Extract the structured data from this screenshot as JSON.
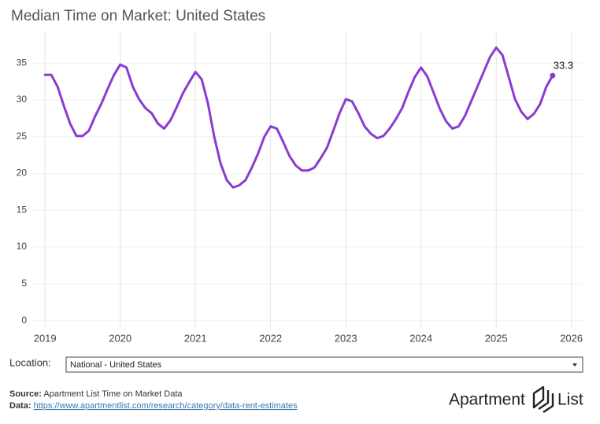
{
  "chart_data": {
    "type": "line",
    "title": "Median Time on Market: United States",
    "x": [
      2019,
      2019.083,
      2019.167,
      2019.25,
      2019.333,
      2019.417,
      2019.5,
      2019.583,
      2019.667,
      2019.75,
      2019.833,
      2019.917,
      2020,
      2020.083,
      2020.167,
      2020.25,
      2020.333,
      2020.417,
      2020.5,
      2020.583,
      2020.667,
      2020.75,
      2020.833,
      2020.917,
      2021,
      2021.083,
      2021.167,
      2021.25,
      2021.333,
      2021.417,
      2021.5,
      2021.583,
      2021.667,
      2021.75,
      2021.833,
      2021.917,
      2022,
      2022.083,
      2022.167,
      2022.25,
      2022.333,
      2022.417,
      2022.5,
      2022.583,
      2022.667,
      2022.75,
      2022.833,
      2022.917,
      2023,
      2023.083,
      2023.167,
      2023.25,
      2023.333,
      2023.417,
      2023.5,
      2023.583,
      2023.667,
      2023.75,
      2023.833,
      2023.917,
      2024,
      2024.083,
      2024.167,
      2024.25,
      2024.333,
      2024.417,
      2024.5,
      2024.583,
      2024.667,
      2024.75,
      2024.833,
      2024.917,
      2025,
      2025.083,
      2025.167,
      2025.25,
      2025.333,
      2025.417,
      2025.5,
      2025.583,
      2025.667,
      2025.75
    ],
    "values": [
      33.4,
      33.4,
      31.8,
      29.2,
      26.8,
      25.1,
      25.1,
      25.8,
      27.8,
      29.5,
      31.5,
      33.4,
      34.8,
      34.4,
      31.8,
      30.1,
      28.9,
      28.2,
      26.8,
      26.1,
      27.2,
      29.0,
      30.9,
      32.4,
      33.8,
      32.8,
      29.5,
      25.0,
      21.4,
      19.1,
      18.1,
      18.4,
      19.1,
      20.8,
      22.7,
      25.0,
      26.4,
      26.1,
      24.3,
      22.4,
      21.1,
      20.4,
      20.4,
      20.8,
      22.1,
      23.5,
      25.8,
      28.2,
      30.1,
      29.8,
      28.2,
      26.4,
      25.4,
      24.8,
      25.1,
      26.1,
      27.4,
      28.9,
      31.1,
      33.1,
      34.4,
      33.2,
      31.0,
      28.8,
      27.1,
      26.1,
      26.4,
      27.8,
      29.8,
      31.8,
      33.8,
      35.8,
      37.1,
      36.1,
      33.1,
      30.1,
      28.4,
      27.4,
      28.1,
      29.4,
      31.8,
      33.3
    ],
    "color": "#8a3bd1",
    "xlim": [
      2018.82,
      2026.15
    ],
    "xticks": [
      2019,
      2020,
      2021,
      2022,
      2023,
      2024,
      2025,
      2026
    ],
    "ylim": [
      -0.9,
      39.3
    ],
    "yticks": [
      0,
      5,
      10,
      15,
      20,
      25,
      30,
      35
    ],
    "grid": true
  },
  "location": {
    "label": "Location:",
    "value": "National - United States"
  },
  "footer": {
    "source_label": "Source:",
    "source": "Apartment List Time on Market Data",
    "data_label": "Data:",
    "data_link": "https://www.apartmentlist.com/research/category/data-rent-estimates"
  },
  "logo": {
    "word1": "Apartment",
    "word2": "List"
  }
}
